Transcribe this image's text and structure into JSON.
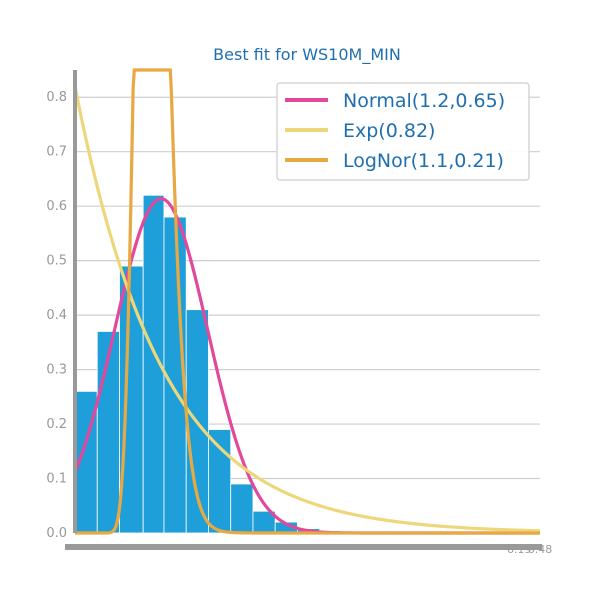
{
  "chart_data": {
    "type": "histogram",
    "title": "Best fit for WS10M_MIN",
    "xlabel": "",
    "ylabel": "",
    "xlim": [
      0.0,
      6.48
    ],
    "ylim": [
      0.0,
      0.85
    ],
    "grid": "horizontal",
    "legend_position": "top-right",
    "y_ticks": [
      "0.0",
      "0.1",
      "0.2",
      "0.3",
      "0.4",
      "0.5",
      "0.6",
      "0.7",
      "0.8"
    ],
    "x_ticks_visible": [
      "6.19",
      "6.48"
    ],
    "histogram": {
      "color": "#1f9fd9",
      "bins": [
        {
          "x0": 0.0,
          "x1": 0.31,
          "value": 0.26
        },
        {
          "x0": 0.31,
          "x1": 0.62,
          "value": 0.37
        },
        {
          "x0": 0.62,
          "x1": 0.95,
          "value": 0.49
        },
        {
          "x0": 0.95,
          "x1": 1.24,
          "value": 0.62
        },
        {
          "x0": 1.24,
          "x1": 1.55,
          "value": 0.58
        },
        {
          "x0": 1.55,
          "x1": 1.86,
          "value": 0.41
        },
        {
          "x0": 1.86,
          "x1": 2.17,
          "value": 0.19
        },
        {
          "x0": 2.17,
          "x1": 2.48,
          "value": 0.09
        },
        {
          "x0": 2.48,
          "x1": 2.79,
          "value": 0.04
        },
        {
          "x0": 2.79,
          "x1": 3.1,
          "value": 0.02
        },
        {
          "x0": 3.1,
          "x1": 3.41,
          "value": 0.008
        },
        {
          "x0": 3.41,
          "x1": 3.72,
          "value": 0.004
        }
      ]
    },
    "series": [
      {
        "name": "Normal(1.2,0.65)",
        "dist": "normal",
        "params": {
          "mu": 1.2,
          "sigma": 0.65
        },
        "color": "#e2489c"
      },
      {
        "name": "Exp(0.82)",
        "dist": "exponential",
        "params": {
          "lambda": 0.82
        },
        "color": "#ecd77a"
      },
      {
        "name": "LogNor(1.1,0.21)",
        "dist": "lognormal",
        "params": {
          "mean": 1.1,
          "std": 0.21
        },
        "color": "#e8a842"
      }
    ],
    "colors": {
      "title": "#1f6fb0",
      "legend_text": "#1f6fb0",
      "tick_text": "#999999",
      "axis": "#999999",
      "grid": "#cfcfcf"
    }
  }
}
